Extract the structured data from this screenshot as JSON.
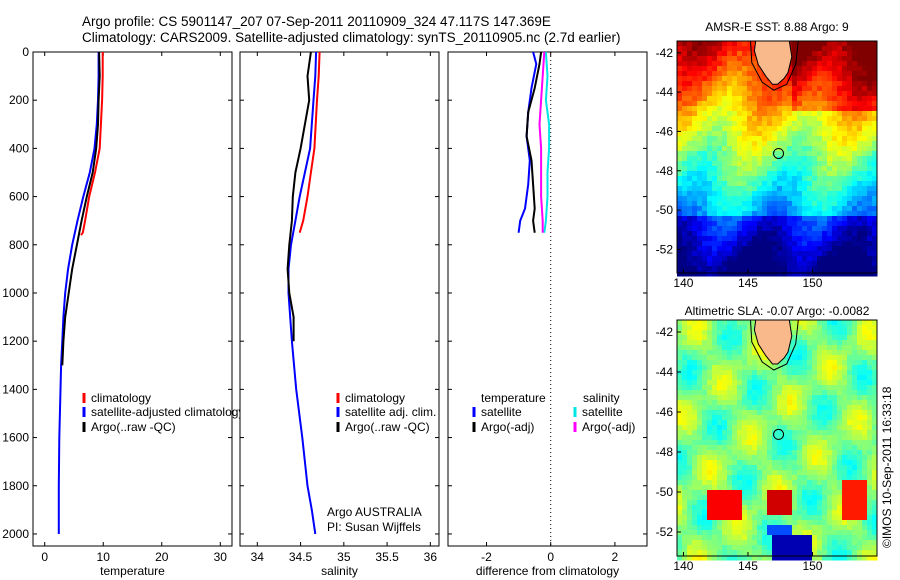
{
  "header": {
    "line1": "Argo profile: CS 5901147_207 07-Sep-2011 20110909_324 47.117S 147.369E",
    "line2": "Climatology: CARS2009. Satellite-adjusted climatology: synTS_20110905.nc (2.7d earlier)"
  },
  "credit": "©IMOS 10-Sep-2011 16:33:18",
  "colors": {
    "climatology": "#ff0000",
    "satellite": "#0000ff",
    "argo": "#000000",
    "salinity_satellite": "#00e5e5",
    "salinity_argo": "#ff00ff"
  },
  "panels": {
    "temperature": {
      "xlabel": "temperature",
      "legend": [
        "climatology",
        "satellite-adjusted climatology",
        "Argo(..raw -QC)"
      ]
    },
    "salinity": {
      "xlabel": "salinity",
      "legend": [
        "climatology",
        "satellite adj. clim.",
        "Argo(..raw -QC)"
      ],
      "note1": "Argo AUSTRALIA",
      "note2": "PI: Susan Wijffels"
    },
    "difference": {
      "xlabel": "difference from climatology",
      "legend_temp_title": "temperature",
      "legend_sal_title": "salinity",
      "legend_temp": [
        "satellite",
        "Argo(-adj)"
      ],
      "legend_sal": [
        "satellite",
        "Argo(-adj)"
      ]
    },
    "sst_map": {
      "title": "AMSR-E SST: 8.88 Argo: 9"
    },
    "sla_map": {
      "title": "Altimetric SLA: -0.07 Argo: -0.0082"
    }
  },
  "chart_data": [
    {
      "type": "line",
      "name": "temperature profile",
      "xlabel": "temperature",
      "xlim": [
        -2,
        32
      ],
      "ylim": [
        2050,
        0
      ],
      "xticks": [
        0,
        10,
        20,
        30
      ],
      "yticks": [
        0,
        200,
        400,
        600,
        800,
        1000,
        1200,
        1400,
        1600,
        1800,
        2000
      ],
      "series": [
        {
          "name": "climatology",
          "color": "#ff0000",
          "x": [
            9.9,
            9.9,
            9.8,
            9.4,
            8.6,
            7.6,
            6.9,
            6.5,
            6.2
          ],
          "y": [
            0,
            100,
            200,
            400,
            500,
            600,
            700,
            750,
            760
          ]
        },
        {
          "name": "satellite-adjusted climatology",
          "color": "#0000ff",
          "x": [
            9.2,
            9.2,
            9.1,
            8.9,
            8.5,
            7.7,
            6.6,
            5.6,
            4.7,
            4.0,
            3.5,
            3.2,
            3.0,
            2.8,
            2.7,
            2.6,
            2.5,
            2.4,
            2.4
          ],
          "y": [
            0,
            100,
            200,
            300,
            400,
            500,
            600,
            700,
            800,
            900,
            1000,
            1100,
            1200,
            1300,
            1400,
            1500,
            1600,
            1800,
            2000
          ]
        },
        {
          "name": "Argo(..raw -QC)",
          "color": "#000000",
          "x": [
            9.3,
            9.4,
            9.2,
            9.1,
            8.8,
            8.2,
            7.2,
            6.3,
            5.5,
            4.7,
            4.1,
            3.5,
            3.2,
            3.0
          ],
          "y": [
            0,
            100,
            200,
            300,
            400,
            500,
            600,
            700,
            800,
            900,
            1000,
            1100,
            1200,
            1300
          ]
        }
      ]
    },
    {
      "type": "line",
      "name": "salinity profile",
      "xlabel": "salinity",
      "xlim": [
        33.8,
        36.1
      ],
      "ylim": [
        2050,
        0
      ],
      "xticks": [
        34,
        34.5,
        35,
        35.5,
        36
      ],
      "series": [
        {
          "name": "climatology",
          "color": "#ff0000",
          "x": [
            34.72,
            34.71,
            34.69,
            34.66,
            34.62,
            34.58,
            34.53,
            34.49
          ],
          "y": [
            0,
            100,
            200,
            400,
            500,
            600,
            700,
            750
          ]
        },
        {
          "name": "satellite adj. clim.",
          "color": "#0000ff",
          "x": [
            34.68,
            34.67,
            34.65,
            34.61,
            34.55,
            34.49,
            34.44,
            34.39,
            34.36,
            34.36,
            34.4,
            34.45,
            34.52,
            34.58,
            34.63,
            34.67
          ],
          "y": [
            0,
            100,
            200,
            400,
            500,
            600,
            700,
            800,
            900,
            1000,
            1200,
            1400,
            1600,
            1800,
            1900,
            2000
          ]
        },
        {
          "name": "Argo(..raw -QC)",
          "color": "#000000",
          "x": [
            34.62,
            34.58,
            34.6,
            34.55,
            34.5,
            34.44,
            34.41,
            34.4,
            34.37,
            34.35,
            34.37,
            34.42,
            34.42
          ],
          "y": [
            0,
            100,
            200,
            300,
            400,
            500,
            600,
            700,
            800,
            900,
            1000,
            1100,
            1200
          ]
        }
      ]
    },
    {
      "type": "line",
      "name": "difference profile",
      "xlabel": "difference from climatology",
      "xlim": [
        -3.2,
        3
      ],
      "ylim": [
        2050,
        0
      ],
      "xticks": [
        -2,
        0,
        2
      ],
      "series": [
        {
          "name": "temperature satellite",
          "color": "#0000ff",
          "x": [
            -0.55,
            -0.45,
            -0.6,
            -0.7,
            -0.75,
            -0.65,
            -0.7,
            -0.8,
            -0.95,
            -1.0
          ],
          "y": [
            0,
            50,
            150,
            250,
            350,
            450,
            550,
            650,
            700,
            750
          ]
        },
        {
          "name": "temperature Argo(-adj)",
          "color": "#000000",
          "x": [
            -0.3,
            -0.35,
            -0.5,
            -0.7,
            -0.75,
            -0.6,
            -0.55,
            -0.5,
            -0.55,
            -0.5
          ],
          "y": [
            0,
            50,
            150,
            250,
            350,
            450,
            550,
            650,
            700,
            750
          ]
        },
        {
          "name": "salinity satellite",
          "color": "#00e5e5",
          "x": [
            -0.15,
            -0.1,
            -0.15,
            -0.05,
            -0.05,
            -0.1,
            -0.1,
            -0.15,
            -0.2
          ],
          "y": [
            0,
            100,
            200,
            300,
            400,
            500,
            600,
            700,
            750
          ]
        },
        {
          "name": "salinity Argo(-adj)",
          "color": "#ff00ff",
          "x": [
            -0.2,
            -0.25,
            -0.3,
            -0.35,
            -0.3,
            -0.3,
            -0.3,
            -0.25,
            -0.25
          ],
          "y": [
            0,
            100,
            200,
            300,
            400,
            500,
            600,
            700,
            750
          ]
        }
      ]
    },
    {
      "type": "heatmap",
      "name": "AMSR-E SST map",
      "title": "AMSR-E SST: 8.88 Argo: 9",
      "xlim": [
        139.5,
        155
      ],
      "ylim": [
        -53.2,
        -41.4
      ],
      "xticks": [
        140,
        145,
        150
      ],
      "yticks": [
        -42,
        -44,
        -46,
        -48,
        -50,
        -52
      ],
      "argo_position": [
        147.37,
        -47.12
      ]
    },
    {
      "type": "heatmap",
      "name": "Altimetric SLA map",
      "title": "Altimetric SLA: -0.07 Argo: -0.0082",
      "xlim": [
        139.5,
        155
      ],
      "ylim": [
        -53.2,
        -41.4
      ],
      "xticks": [
        140,
        145,
        150
      ],
      "yticks": [
        -42,
        -44,
        -46,
        -48,
        -50,
        -52
      ],
      "argo_position": [
        147.37,
        -47.12
      ]
    }
  ]
}
